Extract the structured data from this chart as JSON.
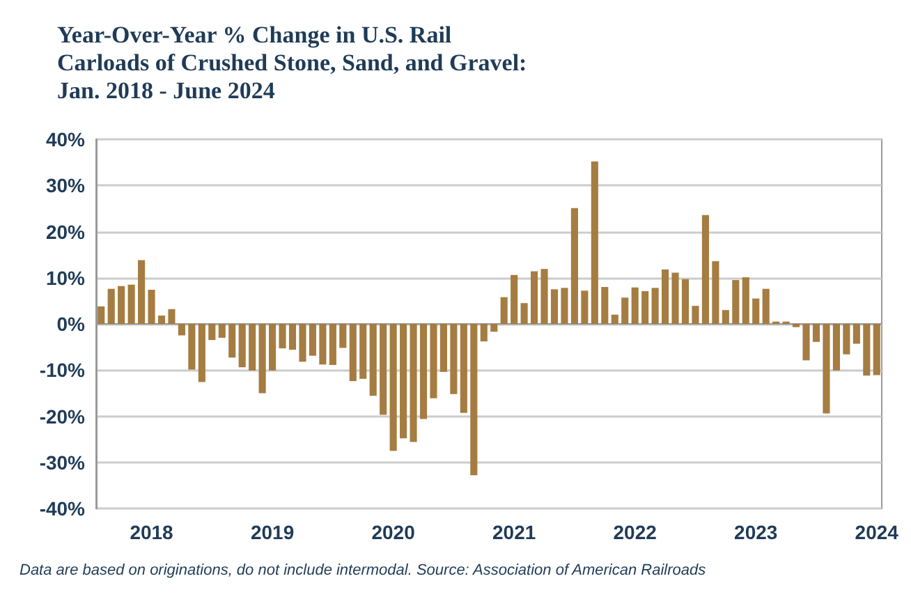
{
  "chart_data": {
    "type": "bar",
    "title": "Year-Over-Year % Change in U.S. Rail\nCarloads of Crushed Stone, Sand, and Gravel:\nJan. 2018 - June 2024",
    "categories": [
      null,
      null,
      null,
      null,
      null,
      "2018",
      null,
      null,
      null,
      null,
      null,
      null,
      null,
      null,
      null,
      null,
      null,
      "2019",
      null,
      null,
      null,
      null,
      null,
      null,
      null,
      null,
      null,
      null,
      null,
      "2020",
      null,
      null,
      null,
      null,
      null,
      null,
      null,
      null,
      null,
      null,
      null,
      "2021",
      null,
      null,
      null,
      null,
      null,
      null,
      null,
      null,
      null,
      null,
      null,
      "2022",
      null,
      null,
      null,
      null,
      null,
      null,
      null,
      null,
      null,
      null,
      null,
      "2023",
      null,
      null,
      null,
      null,
      null,
      null,
      null,
      null,
      null,
      null,
      null,
      "2024"
    ],
    "values": [
      3.8,
      7.6,
      8.2,
      8.5,
      13.8,
      7.4,
      1.8,
      3.2,
      -2.5,
      -9.9,
      -12.6,
      -3.5,
      -3.0,
      -7.3,
      -9.4,
      -10.1,
      -15.0,
      -10.1,
      -5.3,
      -5.6,
      -8.2,
      -6.9,
      -8.8,
      -8.9,
      -5.2,
      -12.4,
      -11.9,
      -15.6,
      -19.7,
      -27.5,
      -24.8,
      -25.6,
      -20.6,
      -16.1,
      -10.4,
      -15.2,
      -19.3,
      -32.8,
      -3.8,
      -1.7,
      5.8,
      10.6,
      4.5,
      11.4,
      11.9,
      7.5,
      7.8,
      25.1,
      7.2,
      35.2,
      8.0,
      2.0,
      5.7,
      7.9,
      7.1,
      7.8,
      11.8,
      11.1,
      9.7,
      3.9,
      23.6,
      13.6,
      3.0,
      9.5,
      10.1,
      5.5,
      7.6,
      0.5,
      0.5,
      -0.7,
      -7.9,
      -3.9,
      -19.4,
      -10.1,
      -6.6,
      -4.3,
      -11.2,
      -11.1
    ],
    "color": "#a57c41",
    "ylim": [
      -40,
      40
    ],
    "yticks": [
      {
        "value": -40,
        "label": "-40%"
      },
      {
        "value": -30,
        "label": "-30%"
      },
      {
        "value": -20,
        "label": "-20%"
      },
      {
        "value": -10,
        "label": "-10%"
      },
      {
        "value": 0,
        "label": "0%"
      },
      {
        "value": 10,
        "label": "10%"
      },
      {
        "value": 20,
        "label": "20%"
      },
      {
        "value": 30,
        "label": "30%"
      },
      {
        "value": 40,
        "label": "40%"
      }
    ],
    "grid": "y",
    "annotations": [
      "Data are based on originations, do not include intermodal. Source: Association of American Railroads"
    ]
  }
}
